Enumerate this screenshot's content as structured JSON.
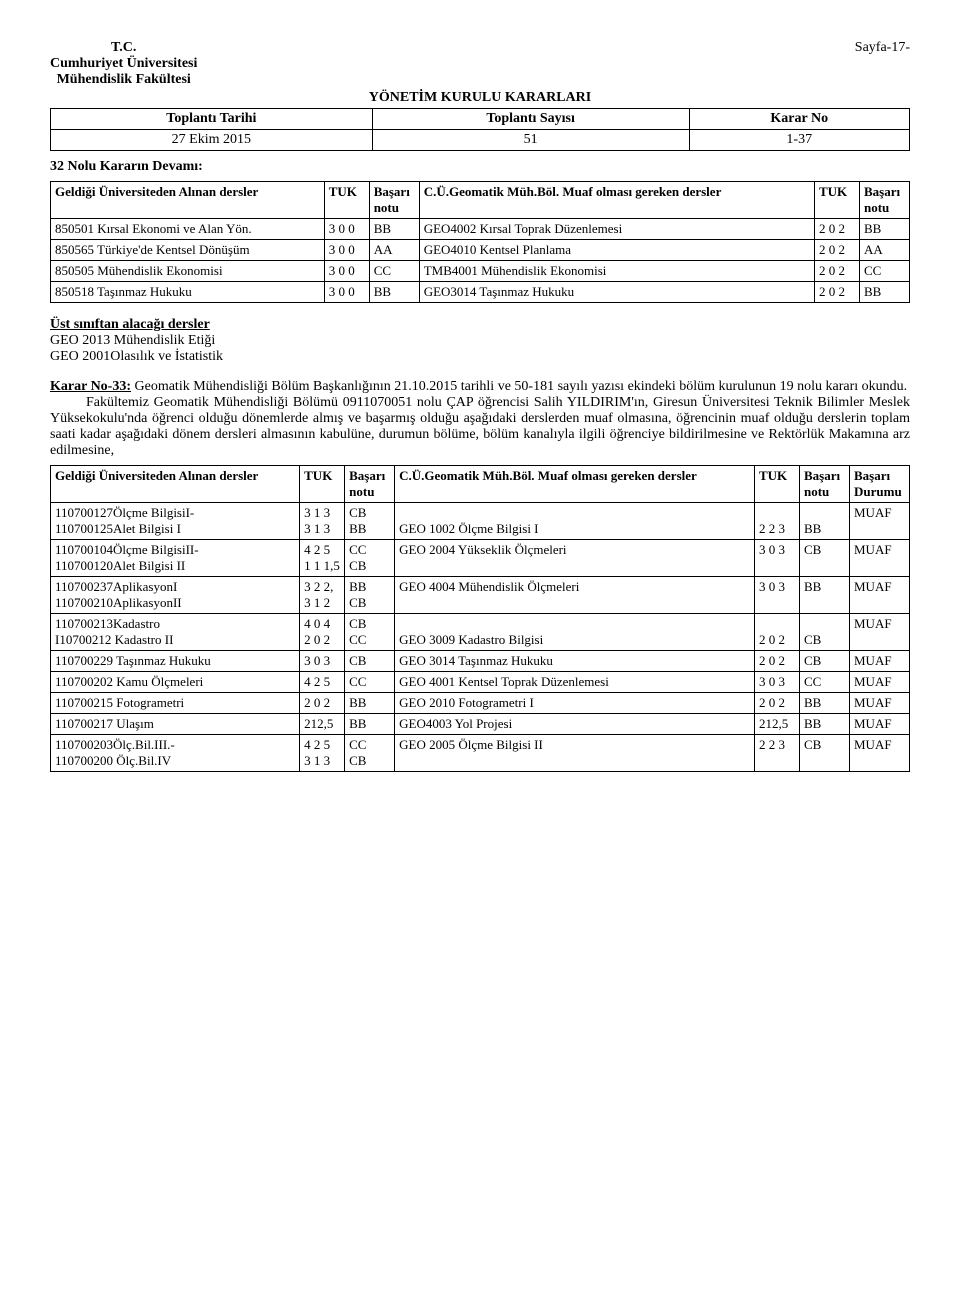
{
  "header": {
    "tc": "T.C.",
    "uni": "Cumhuriyet Üniversitesi",
    "fak": "Mühendislik Fakültesi",
    "page_label": "Sayfa-17-",
    "doc_title": "YÖNETİM KURULU KARARLARI"
  },
  "meta": {
    "h1": "Toplantı Tarihi",
    "h2": "Toplantı Sayısı",
    "h3": "Karar No",
    "v1": "27 Ekim 2015",
    "v2": "51",
    "v3": "1-37"
  },
  "cont_title": "32 Nolu Kararın Devamı:",
  "table1": {
    "headers": {
      "c1": "Geldiği Üniversiteden Alınan dersler",
      "c2": "TUK",
      "c3": "Başarı notu",
      "c4": "C.Ü.Geomatik Müh.Böl. Muaf olması gereken dersler",
      "c5": "TUK",
      "c6": "Başarı notu"
    },
    "rows": [
      {
        "c1": "850501 Kırsal Ekonomi ve Alan Yön.",
        "c2": "3 0 0",
        "c3": "BB",
        "c4": "GEO4002 Kırsal Toprak Düzenlemesi",
        "c5": "2 0 2",
        "c6": "BB"
      },
      {
        "c1": "850565 Türkiye'de Kentsel Dönüşüm",
        "c2": "3 0 0",
        "c3": "AA",
        "c4": "GEO4010 Kentsel Planlama",
        "c5": "2 0 2",
        "c6": "AA"
      },
      {
        "c1": "850505 Mühendislik Ekonomisi",
        "c2": "3 0 0",
        "c3": "CC",
        "c4": "TMB4001 Mühendislik Ekonomisi",
        "c5": "2 0 2",
        "c6": "CC"
      },
      {
        "c1": "850518 Taşınmaz Hukuku",
        "c2": "3 0 0",
        "c3": "BB",
        "c4": "GEO3014 Taşınmaz Hukuku",
        "c5": "2 0 2",
        "c6": "BB"
      }
    ]
  },
  "ust": {
    "title": "Üst sınıftan alacağı dersler",
    "l1": "GEO 2013 Mühendislik Etiği",
    "l2": "GEO 2001Olasılık ve İstatistik"
  },
  "karar33": {
    "title": "Karar No-33:",
    "p1": " Geomatik Mühendisliği Bölüm Başkanlığının 21.10.2015 tarihli ve 50-181 sayılı yazısı ekindeki bölüm kurulunun 19 nolu kararı okundu.",
    "p2": "Fakültemiz Geomatik Mühendisliği Bölümü 0911070051 nolu ÇAP öğrencisi  Salih YILDIRIM'ın, Giresun Üniversitesi Teknik Bilimler Meslek Yüksekokulu'nda öğrenci olduğu dönemlerde almış ve başarmış olduğu aşağıdaki derslerden muaf olmasına, öğrencinin muaf olduğu derslerin toplam saati kadar aşağıdaki dönem dersleri almasının kabulüne, durumun bölüme, bölüm kanalıyla ilgili öğrenciye bildirilmesine ve Rektörlük Makamına arz edilmesine,"
  },
  "table2": {
    "headers": {
      "c1": "Geldiği Üniversiteden Alınan dersler",
      "c2": "TUK",
      "c3": "Başarı notu",
      "c4": "C.Ü.Geomatik Müh.Böl. Muaf olması gereken dersler",
      "c5": "TUK",
      "c6": "Başarı notu",
      "c7": "Başarı Durumu"
    },
    "rows": [
      {
        "c1": "110700127Ölçme BilgisiI-\n110700125Alet Bilgisi I",
        "c2": "3 1 3\n3 1 3",
        "c3": "CB\nBB",
        "c4": "\nGEO 1002 Ölçme Bilgisi I",
        "c5": "\n2 2 3",
        "c6": "\nBB",
        "c7": "MUAF"
      },
      {
        "c1": "110700104Ölçme BilgisiII-\n110700120Alet Bilgisi II",
        "c2": "4 2 5\n1 1 1,5",
        "c3": "CC\nCB",
        "c4": "GEO 2004 Yükseklik Ölçmeleri",
        "c5": "3 0 3",
        "c6": "CB",
        "c7": "MUAF"
      },
      {
        "c1": "110700237AplikasyonI\n110700210AplikasyonII",
        "c2": "3 2 2,\n3 1 2",
        "c3": "BB\nCB",
        "c4": "GEO 4004 Mühendislik Ölçmeleri",
        "c5": "3 0 3",
        "c6": "BB",
        "c7": "MUAF"
      },
      {
        "c1": "110700213Kadastro\nI10700212 Kadastro II",
        "c2": "4 0 4\n2 0 2",
        "c3": "CB\nCC",
        "c4": "\nGEO 3009 Kadastro Bilgisi",
        "c5": "\n2 0 2",
        "c6": "\nCB",
        "c7": "MUAF"
      },
      {
        "c1": "110700229 Taşınmaz Hukuku",
        "c2": "3 0 3",
        "c3": "CB",
        "c4": "GEO 3014 Taşınmaz Hukuku",
        "c5": "2 0 2",
        "c6": "CB",
        "c7": "MUAF"
      },
      {
        "c1": "110700202 Kamu Ölçmeleri",
        "c2": "4 2 5",
        "c3": "CC",
        "c4": "GEO 4001 Kentsel Toprak Düzenlemesi",
        "c5": "3 0 3",
        "c6": "CC",
        "c7": "MUAF"
      },
      {
        "c1": "110700215 Fotogrametri",
        "c2": "2 0 2",
        "c3": "BB",
        "c4": "GEO 2010 Fotogrametri I",
        "c5": "2 0 2",
        "c6": "BB",
        "c7": "MUAF"
      },
      {
        "c1": "110700217 Ulaşım",
        "c2": "212,5",
        "c3": "BB",
        "c4": "GEO4003 Yol Projesi",
        "c5": "212,5",
        "c6": "BB",
        "c7": "MUAF"
      },
      {
        "c1": "110700203Ölç.Bil.III.-\n110700200 Ölç.Bil.IV",
        "c2": "4 2 5\n3 1 3",
        "c3": "CC\nCB",
        "c4": "GEO 2005 Ölçme Bilgisi II",
        "c5": "2 2 3",
        "c6": "CB",
        "c7": "MUAF"
      }
    ]
  }
}
